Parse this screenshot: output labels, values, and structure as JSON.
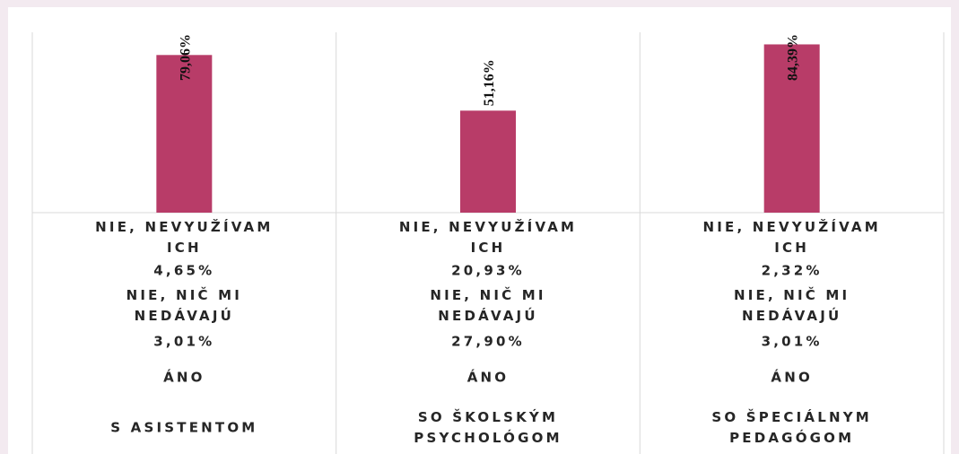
{
  "chart_data": {
    "type": "bar",
    "categories": [
      "S ASISTENTOM",
      "SO ŠKOLSKÝM PSYCHOLÓGOM",
      "SO ŠPECIÁLNYM PEDAGÓGOM"
    ],
    "values": [
      79.06,
      51.16,
      84.39
    ],
    "value_labels": [
      "79,06%",
      "51,16%",
      "84,39%"
    ],
    "color": "#b83c68",
    "ylim": [
      0,
      90
    ],
    "axis_rows": [
      [
        "NIE, NEVYUŽÍVAM ICH",
        "NIE, NEVYUŽÍVAM ICH",
        "NIE, NEVYUŽÍVAM ICH"
      ],
      [
        "4,65%",
        "20,93%",
        "2,32%"
      ],
      [
        "NIE, NIČ MI NEDÁVAJÚ",
        "NIE, NIČ MI NEDÁVAJÚ",
        "NIE, NIČ MI NEDÁVAJÚ"
      ],
      [
        "3,01%",
        "27,90%",
        "3,01%"
      ],
      [
        "ÁNO",
        "ÁNO",
        "ÁNO"
      ]
    ]
  }
}
